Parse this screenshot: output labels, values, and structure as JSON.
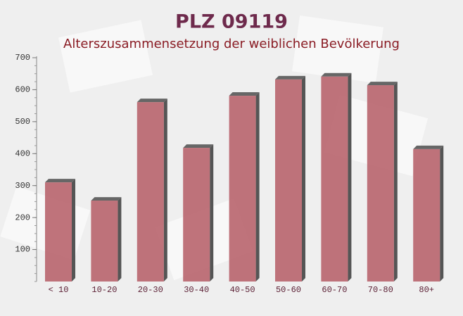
{
  "chart_data": {
    "type": "bar",
    "title": "PLZ 09119",
    "subtitle": "Alterszusammensetzung der weiblichen Bevölkerung",
    "categories": [
      "< 10",
      "10-20",
      "20-30",
      "30-40",
      "40-50",
      "50-60",
      "60-70",
      "70-80",
      "80+"
    ],
    "values": [
      310,
      253,
      561,
      418,
      581,
      632,
      641,
      614,
      414
    ],
    "color": "#b8646d",
    "ylim": [
      0,
      700
    ],
    "yticks": [
      100,
      200,
      300,
      400,
      500,
      600,
      700
    ]
  }
}
